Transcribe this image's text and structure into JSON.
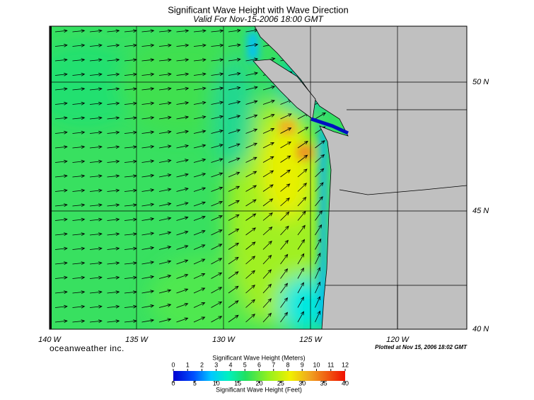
{
  "map": {
    "title": "Significant Wave Height with Wave Direction",
    "subtitle": "Valid For Nov-15-2006 18:00 GMT",
    "lon_ticks": [
      {
        "value": -140,
        "label": "140 W"
      },
      {
        "value": -135,
        "label": "135 W"
      },
      {
        "value": -130,
        "label": "130 W"
      },
      {
        "value": -125,
        "label": "125 W"
      },
      {
        "value": -120,
        "label": "120 W"
      }
    ],
    "lat_ticks": [
      {
        "value": 50,
        "label": "50 N"
      },
      {
        "value": 45,
        "label": "45 N"
      },
      {
        "value": 40,
        "label": "40 N"
      }
    ],
    "credit": "oceanweather inc.",
    "plotted": "Plotted at Nov 15, 2006 18:02 GMT"
  },
  "colorbar": {
    "meters_label": "Significant Wave Height (Meters)",
    "meters_range": [
      0,
      12
    ],
    "meters_ticks": [
      0,
      1,
      2,
      3,
      4,
      5,
      6,
      7,
      8,
      9,
      10,
      11,
      12
    ],
    "feet_label": "Significant Wave Height (Feet)",
    "feet_range": [
      0,
      40
    ],
    "feet_ticks": [
      0,
      5,
      10,
      15,
      20,
      25,
      30,
      35,
      40
    ]
  }
}
